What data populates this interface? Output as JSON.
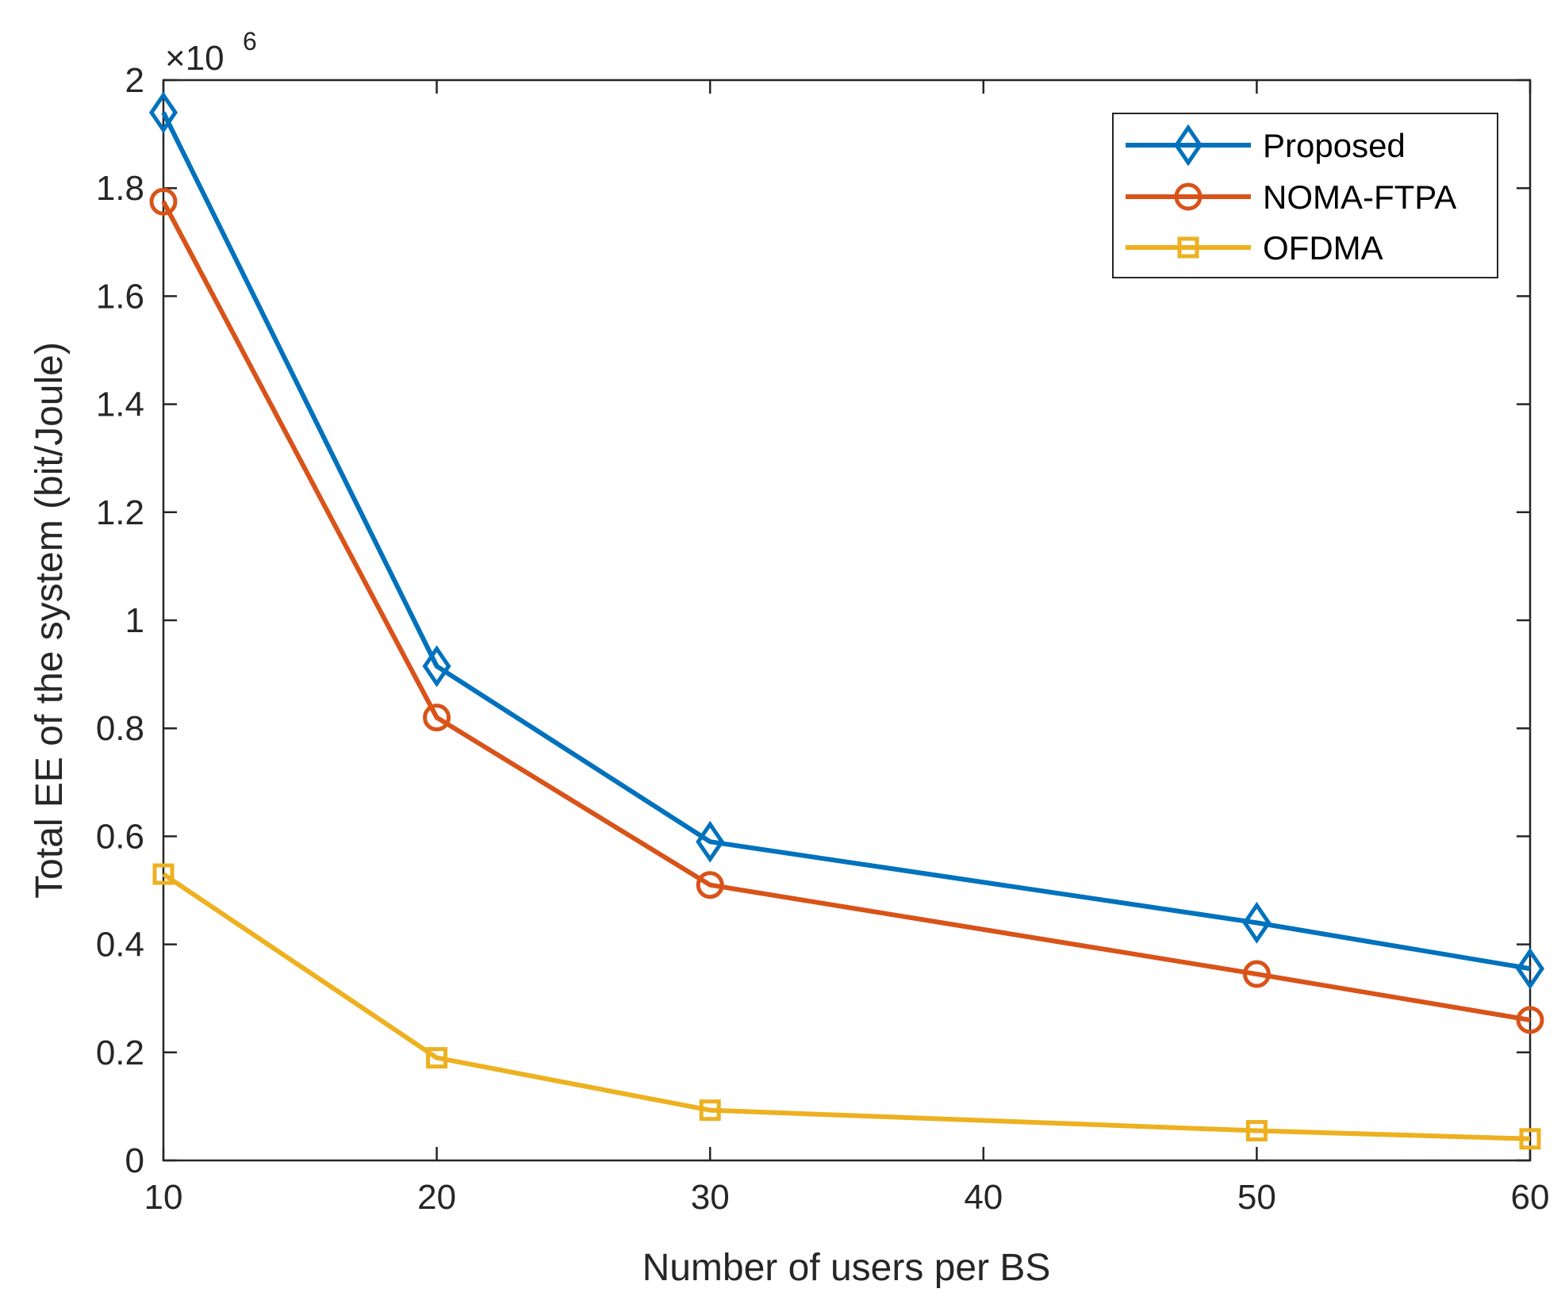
{
  "chart_data": {
    "type": "line",
    "title": "",
    "xlabel": "Number of users per BS",
    "ylabel": "Total EE of the system (bit/Joule)",
    "y_multiplier": {
      "symbol": "×10",
      "exponent": "6"
    },
    "xlim": [
      10,
      60
    ],
    "ylim": [
      0,
      2
    ],
    "xticks": [
      10,
      20,
      30,
      40,
      50,
      60
    ],
    "yticks": [
      0,
      0.2,
      0.4,
      0.6,
      0.8,
      1,
      1.2,
      1.4,
      1.6,
      1.8,
      2
    ],
    "xtick_labels": [
      "10",
      "20",
      "30",
      "40",
      "50",
      "60"
    ],
    "ytick_labels": [
      "0",
      "0.2",
      "0.4",
      "0.6",
      "0.8",
      "1",
      "1.2",
      "1.4",
      "1.6",
      "1.8",
      "2"
    ],
    "x": [
      10,
      20,
      30,
      50,
      60
    ],
    "series": [
      {
        "name": "Proposed",
        "color": "#0072BD",
        "marker": "diamond",
        "values": [
          1.94,
          0.915,
          0.59,
          0.44,
          0.355
        ]
      },
      {
        "name": "NOMA-FTPA",
        "color": "#D95319",
        "marker": "circle",
        "values": [
          1.775,
          0.82,
          0.51,
          0.345,
          0.26
        ]
      },
      {
        "name": "OFDMA",
        "color": "#EDB120",
        "marker": "square",
        "values": [
          0.53,
          0.19,
          0.093,
          0.055,
          0.04
        ]
      }
    ],
    "legend_position": "top-right",
    "grid": false
  }
}
